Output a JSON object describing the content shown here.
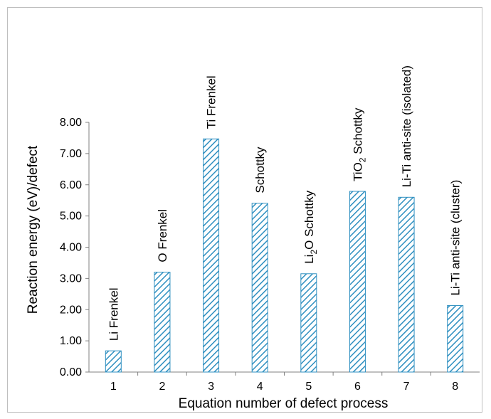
{
  "chart_data": {
    "type": "bar",
    "categories": [
      "1",
      "2",
      "3",
      "4",
      "5",
      "6",
      "7",
      "8"
    ],
    "values": [
      0.68,
      3.2,
      7.47,
      5.41,
      3.15,
      5.79,
      5.6,
      2.13
    ],
    "bar_labels": [
      {
        "text": "Li Frenkel"
      },
      {
        "text": "O Frenkel"
      },
      {
        "text": "Ti Frenkel"
      },
      {
        "text": "Schottky"
      },
      {
        "pre": "Li",
        "sub": "2",
        "post": "O Schottky",
        "text": "Li2O Schottky"
      },
      {
        "pre": "TiO",
        "sub": "2",
        "post": " Schottky",
        "text": "TiO2 Schottky"
      },
      {
        "text": "Li-Ti anti-site (isolated)"
      },
      {
        "text": "Li-Ti anti-site (cluster)"
      }
    ],
    "title": "",
    "xlabel": "Equation number of defect process",
    "ylabel": "Reaction energy (eV)/defect",
    "ylim": [
      0,
      8
    ],
    "yticks": [
      "0.00",
      "1.00",
      "2.00",
      "3.00",
      "4.00",
      "5.00",
      "6.00",
      "7.00",
      "8.00"
    ],
    "grid": false,
    "legend": "none",
    "bar_fill": "diagonal-hatch",
    "bar_color": "#2e8fc0"
  }
}
